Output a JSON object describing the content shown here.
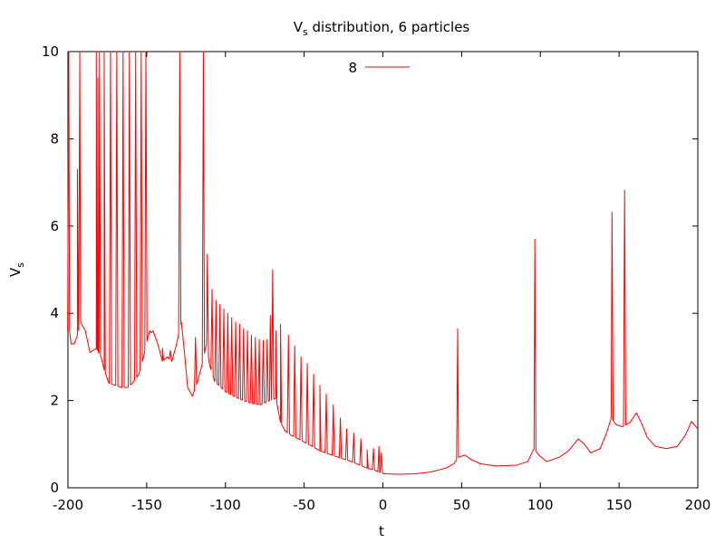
{
  "chart_data": {
    "type": "line",
    "title_main": "V",
    "title_sub": "s",
    "title_rest": " distribution, 6 particles",
    "xlabel": "t",
    "ylabel_main": "V",
    "ylabel_sub": "s",
    "xlim": [
      -200,
      200
    ],
    "ylim": [
      0,
      10
    ],
    "xticks": [
      -200,
      -150,
      -100,
      -50,
      0,
      50,
      100,
      150,
      200
    ],
    "xtick_labels": [
      "-200",
      "-150",
      "-100",
      "-50",
      "0",
      "50",
      "100",
      "150",
      "200"
    ],
    "yticks": [
      0,
      2,
      4,
      6,
      8,
      10
    ],
    "ytick_labels": [
      "0",
      "2",
      "4",
      "6",
      "8",
      "10"
    ],
    "legend_position": "top-center",
    "series": [
      {
        "name": "8",
        "color": "#ff0000",
        "baseline": [
          [
            -199,
            3.6
          ],
          [
            -198,
            3.3
          ],
          [
            -196,
            3.3
          ],
          [
            -194,
            3.5
          ],
          [
            -192,
            3.8
          ],
          [
            -189,
            3.6
          ],
          [
            -186,
            3.1
          ],
          [
            -182,
            3.2
          ],
          [
            -179,
            3.0
          ],
          [
            -177,
            2.7
          ],
          [
            -174,
            2.4
          ],
          [
            -170,
            2.35
          ],
          [
            -166,
            2.3
          ],
          [
            -162,
            2.3
          ],
          [
            -159,
            2.4
          ],
          [
            -155,
            2.6
          ],
          [
            -152,
            3.0
          ],
          [
            -149,
            3.5
          ],
          [
            -146,
            3.6
          ],
          [
            -143,
            3.3
          ],
          [
            -140,
            2.9
          ],
          [
            -137,
            3.0
          ],
          [
            -134,
            2.9
          ],
          [
            -131,
            3.3
          ],
          [
            -128,
            3.8
          ],
          [
            -126,
            3.1
          ],
          [
            -124,
            2.3
          ],
          [
            -121,
            2.1
          ],
          [
            -118,
            2.4
          ],
          [
            -115,
            2.8
          ],
          [
            -112,
            3.3
          ],
          [
            -110,
            2.8
          ],
          [
            -107,
            2.45
          ],
          [
            -100,
            2.2
          ],
          [
            -92,
            2.05
          ],
          [
            -85,
            1.95
          ],
          [
            -78,
            1.9
          ],
          [
            -72,
            2.0
          ],
          [
            -68,
            2.05
          ],
          [
            -65,
            1.5
          ],
          [
            -62,
            1.3
          ],
          [
            -58,
            1.2
          ],
          [
            -50,
            1.05
          ],
          [
            -40,
            0.85
          ],
          [
            -30,
            0.72
          ],
          [
            -20,
            0.6
          ],
          [
            -10,
            0.45
          ],
          [
            -5,
            0.4
          ],
          [
            -2,
            0.35
          ],
          [
            0,
            0.33
          ],
          [
            3,
            0.32
          ],
          [
            10,
            0.31
          ],
          [
            20,
            0.32
          ],
          [
            30,
            0.36
          ],
          [
            40,
            0.45
          ],
          [
            45,
            0.55
          ],
          [
            48,
            0.7
          ],
          [
            52,
            0.75
          ],
          [
            56,
            0.65
          ],
          [
            62,
            0.55
          ],
          [
            72,
            0.5
          ],
          [
            85,
            0.52
          ],
          [
            92,
            0.6
          ],
          [
            96,
            0.9
          ],
          [
            99,
            0.75
          ],
          [
            104,
            0.6
          ],
          [
            112,
            0.7
          ],
          [
            118,
            0.85
          ],
          [
            124,
            1.12
          ],
          [
            128,
            1.0
          ],
          [
            132,
            0.8
          ],
          [
            138,
            0.9
          ],
          [
            142,
            1.25
          ],
          [
            145,
            1.6
          ],
          [
            148,
            1.45
          ],
          [
            152,
            1.4
          ],
          [
            157,
            1.5
          ],
          [
            161,
            1.72
          ],
          [
            164,
            1.5
          ],
          [
            168,
            1.15
          ],
          [
            173,
            0.95
          ],
          [
            180,
            0.9
          ],
          [
            187,
            0.95
          ],
          [
            192,
            1.2
          ],
          [
            196,
            1.52
          ],
          [
            200,
            1.35
          ]
        ],
        "peaks": [
          [
            -199.5,
            10
          ],
          [
            -194,
            7.3
          ],
          [
            -192.5,
            10
          ],
          [
            -182,
            10
          ],
          [
            -181,
            9.4
          ],
          [
            -180,
            10
          ],
          [
            -177,
            10
          ],
          [
            -173,
            10
          ],
          [
            -169,
            10
          ],
          [
            -165,
            10
          ],
          [
            -161,
            10
          ],
          [
            -157,
            10
          ],
          [
            -153.5,
            10
          ],
          [
            -150.5,
            10
          ],
          [
            -148,
            3.6
          ],
          [
            -140,
            3.2
          ],
          [
            -135,
            3.15
          ],
          [
            -129,
            10
          ],
          [
            -119,
            3.45
          ],
          [
            -114,
            10
          ],
          [
            -111.5,
            5.35
          ],
          [
            -108.5,
            4.55
          ],
          [
            -106,
            4.3
          ],
          [
            -103.5,
            4.2
          ],
          [
            -101,
            4.1
          ],
          [
            -98.5,
            4.0
          ],
          [
            -96,
            3.9
          ],
          [
            -93.5,
            3.8
          ],
          [
            -91,
            3.75
          ],
          [
            -88.5,
            3.65
          ],
          [
            -86,
            3.6
          ],
          [
            -83.5,
            3.5
          ],
          [
            -81,
            3.45
          ],
          [
            -78.5,
            3.4
          ],
          [
            -76,
            3.38
          ],
          [
            -73.5,
            3.4
          ],
          [
            -71.5,
            3.95
          ],
          [
            -70,
            5.0
          ],
          [
            -68,
            3.6
          ],
          [
            -65,
            3.75
          ],
          [
            -60,
            3.5
          ],
          [
            -56,
            3.25
          ],
          [
            -52,
            3.0
          ],
          [
            -48,
            2.85
          ],
          [
            -44,
            2.6
          ],
          [
            -40,
            2.35
          ],
          [
            -36,
            2.15
          ],
          [
            -31.5,
            1.9
          ],
          [
            -27,
            1.6
          ],
          [
            -23,
            1.35
          ],
          [
            -18.5,
            1.25
          ],
          [
            -14,
            1.12
          ],
          [
            -10,
            0.87
          ],
          [
            -6,
            0.9
          ],
          [
            -2.5,
            0.95
          ],
          [
            -1,
            0.8
          ],
          [
            47.5,
            3.65
          ],
          [
            96.5,
            5.7
          ],
          [
            145.5,
            6.32
          ],
          [
            153.5,
            6.82
          ]
        ]
      }
    ]
  }
}
